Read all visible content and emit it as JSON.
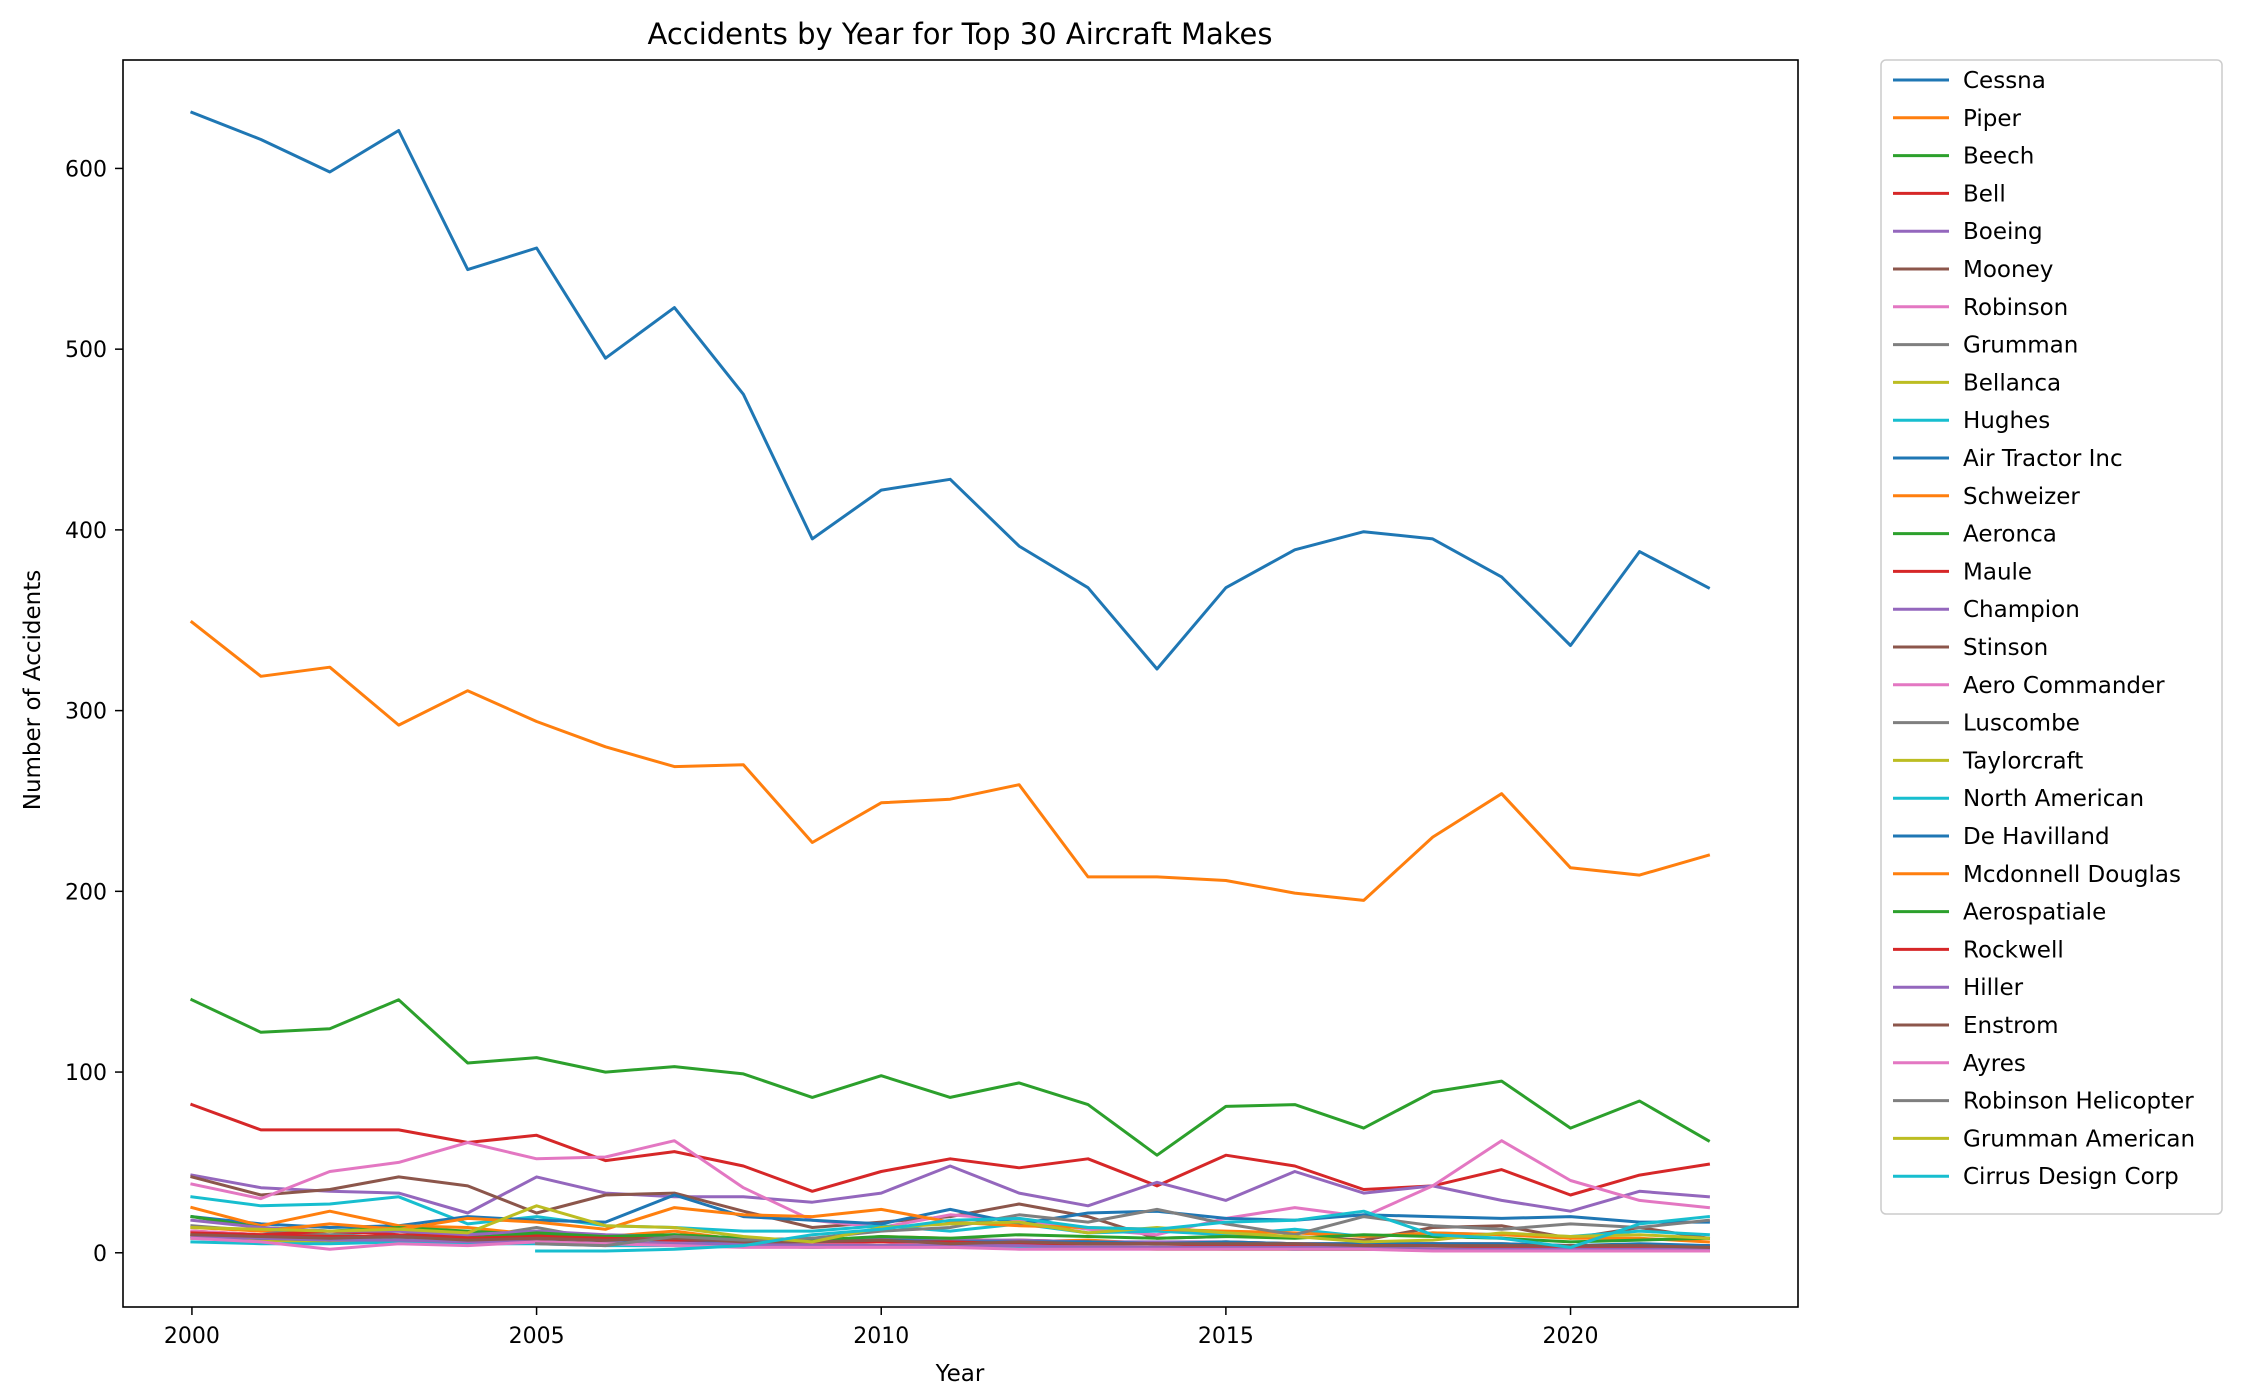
{
  "chart_data": {
    "type": "line",
    "title": "Accidents by Year for Top 30 Aircraft Makes",
    "xlabel": "Year",
    "ylabel": "Number of Accidents",
    "x": [
      2000,
      2001,
      2002,
      2003,
      2004,
      2005,
      2006,
      2007,
      2008,
      2009,
      2010,
      2011,
      2012,
      2013,
      2014,
      2015,
      2016,
      2017,
      2018,
      2019,
      2020,
      2021,
      2022
    ],
    "xlim": [
      1999,
      2023.3
    ],
    "ylim": [
      -30,
      660
    ],
    "xticks": [
      2000,
      2005,
      2010,
      2015,
      2020
    ],
    "yticks": [
      0,
      100,
      200,
      300,
      400,
      500,
      600
    ],
    "grid": false,
    "legend_position": "outside-right",
    "series": [
      {
        "name": "Cessna",
        "color": "#1f77b4",
        "values": [
          631,
          616,
          598,
          621,
          544,
          556,
          495,
          523,
          475,
          395,
          422,
          428,
          391,
          368,
          323,
          368,
          389,
          399,
          395,
          374,
          336,
          388,
          368
        ]
      },
      {
        "name": "Piper",
        "color": "#ff7f0e",
        "values": [
          349,
          319,
          324,
          292,
          311,
          294,
          280,
          269,
          270,
          227,
          249,
          251,
          259,
          208,
          208,
          206,
          199,
          195,
          230,
          254,
          213,
          209,
          220
        ]
      },
      {
        "name": "Beech",
        "color": "#2ca02c",
        "values": [
          140,
          122,
          124,
          140,
          105,
          108,
          100,
          103,
          99,
          86,
          98,
          86,
          94,
          82,
          54,
          81,
          82,
          69,
          89,
          95,
          69,
          84,
          62
        ]
      },
      {
        "name": "Bell",
        "color": "#d62728",
        "values": [
          82,
          68,
          68,
          68,
          61,
          65,
          51,
          56,
          48,
          34,
          45,
          52,
          47,
          52,
          37,
          54,
          48,
          35,
          37,
          46,
          32,
          43,
          49
        ]
      },
      {
        "name": "Boeing",
        "color": "#9467bd",
        "values": [
          43,
          36,
          34,
          33,
          22,
          42,
          33,
          31,
          31,
          28,
          33,
          48,
          33,
          26,
          39,
          29,
          45,
          33,
          37,
          29,
          23,
          34,
          31
        ]
      },
      {
        "name": "Mooney",
        "color": "#8c564b",
        "values": [
          42,
          32,
          35,
          42,
          37,
          22,
          32,
          33,
          23,
          14,
          17,
          20,
          27,
          20,
          8,
          9,
          9,
          7,
          14,
          15,
          8,
          14,
          8
        ]
      },
      {
        "name": "Robinson",
        "color": "#e377c2",
        "values": [
          38,
          30,
          45,
          50,
          61,
          52,
          53,
          62,
          36,
          18,
          14,
          21,
          18,
          13,
          10,
          19,
          25,
          20,
          37,
          62,
          40,
          29,
          25
        ]
      },
      {
        "name": "Grumman",
        "color": "#7f7f7f",
        "values": [
          15,
          12,
          10,
          12,
          8,
          14,
          7,
          9,
          7,
          5,
          6,
          5,
          5,
          6,
          5,
          5,
          4,
          4,
          5,
          4,
          4,
          4,
          3
        ]
      },
      {
        "name": "Bellanca",
        "color": "#bcbd22",
        "values": [
          10,
          8,
          8,
          7,
          6,
          7,
          5,
          5,
          4,
          3,
          4,
          3,
          3,
          3,
          3,
          2,
          2,
          3,
          2,
          2,
          2,
          2,
          1
        ]
      },
      {
        "name": "Hughes",
        "color": "#17becf",
        "values": [
          31,
          26,
          27,
          31,
          16,
          20,
          15,
          14,
          12,
          12,
          15,
          12,
          16,
          11,
          12,
          10,
          13,
          9,
          11,
          10,
          9,
          12,
          10
        ]
      },
      {
        "name": "Air Tractor Inc",
        "color": "#1f77b4",
        "values": [
          20,
          16,
          14,
          15,
          20,
          18,
          17,
          32,
          20,
          18,
          16,
          24,
          16,
          22,
          23,
          19,
          18,
          21,
          20,
          19,
          20,
          17,
          17
        ]
      },
      {
        "name": "Schweizer",
        "color": "#ff7f0e",
        "values": [
          25,
          15,
          23,
          15,
          14,
          10,
          9,
          12,
          7,
          6,
          9,
          8,
          6,
          7,
          5,
          5,
          4,
          4,
          5,
          5,
          4,
          4,
          4
        ]
      },
      {
        "name": "Aeronca",
        "color": "#2ca02c",
        "values": [
          20,
          14,
          12,
          14,
          12,
          10,
          9,
          10,
          8,
          7,
          8,
          7,
          6,
          6,
          5,
          5,
          5,
          4,
          4,
          4,
          3,
          3,
          3
        ]
      },
      {
        "name": "Maule",
        "color": "#d62728",
        "values": [
          12,
          10,
          12,
          10,
          9,
          10,
          9,
          8,
          7,
          8,
          7,
          6,
          7,
          6,
          5,
          6,
          5,
          5,
          5,
          4,
          4,
          4,
          3
        ]
      },
      {
        "name": "Champion",
        "color": "#9467bd",
        "values": [
          18,
          14,
          12,
          12,
          10,
          12,
          10,
          9,
          8,
          7,
          8,
          7,
          7,
          6,
          6,
          6,
          5,
          5,
          5,
          5,
          4,
          4,
          4
        ]
      },
      {
        "name": "Stinson",
        "color": "#8c564b",
        "values": [
          10,
          8,
          7,
          8,
          6,
          7,
          6,
          5,
          5,
          4,
          4,
          4,
          3,
          3,
          3,
          3,
          2,
          2,
          2,
          2,
          2,
          2,
          1
        ]
      },
      {
        "name": "Aero Commander",
        "color": "#e377c2",
        "values": [
          12,
          10,
          6,
          9,
          7,
          8,
          7,
          6,
          5,
          5,
          6,
          4,
          4,
          4,
          3,
          3,
          3,
          3,
          3,
          2,
          2,
          2,
          2
        ]
      },
      {
        "name": "Luscombe",
        "color": "#7f7f7f",
        "values": [
          8,
          7,
          6,
          7,
          5,
          6,
          5,
          5,
          4,
          4,
          4,
          3,
          3,
          3,
          3,
          3,
          2,
          2,
          2,
          2,
          2,
          2,
          1
        ]
      },
      {
        "name": "Taylorcraft",
        "color": "#bcbd22",
        "values": [
          8,
          7,
          6,
          6,
          5,
          6,
          5,
          4,
          4,
          3,
          4,
          3,
          3,
          3,
          2,
          2,
          2,
          2,
          2,
          2,
          1,
          1,
          1
        ]
      },
      {
        "name": "North American",
        "color": "#17becf",
        "values": [
          6,
          5,
          5,
          6,
          5,
          5,
          4,
          4,
          4,
          3,
          4,
          3,
          3,
          3,
          3,
          3,
          2,
          3,
          2,
          2,
          2,
          2,
          2
        ]
      },
      {
        "name": "De Havilland",
        "color": "#1f77b4",
        "values": [
          9,
          8,
          8,
          9,
          7,
          8,
          7,
          7,
          6,
          6,
          7,
          6,
          6,
          6,
          5,
          6,
          5,
          5,
          5,
          5,
          4,
          5,
          4
        ]
      },
      {
        "name": "Mcdonnell Douglas",
        "color": "#ff7f0e",
        "values": [
          14,
          12,
          16,
          13,
          19,
          17,
          13,
          25,
          21,
          20,
          24,
          17,
          15,
          14,
          13,
          12,
          11,
          9,
          11,
          10,
          8,
          8,
          6
        ]
      },
      {
        "name": "Aerospatiale",
        "color": "#2ca02c",
        "values": [
          10,
          8,
          7,
          9,
          8,
          11,
          9,
          10,
          8,
          7,
          9,
          8,
          10,
          9,
          8,
          9,
          8,
          10,
          9,
          8,
          6,
          7,
          8
        ]
      },
      {
        "name": "Rockwell",
        "color": "#d62728",
        "values": [
          11,
          10,
          9,
          9,
          8,
          9,
          8,
          7,
          7,
          6,
          6,
          6,
          5,
          5,
          5,
          4,
          4,
          4,
          4,
          3,
          3,
          3,
          3
        ]
      },
      {
        "name": "Hiller",
        "color": "#9467bd",
        "values": [
          9,
          8,
          7,
          7,
          6,
          6,
          5,
          5,
          5,
          4,
          4,
          4,
          4,
          3,
          3,
          3,
          3,
          3,
          2,
          2,
          2,
          2,
          2
        ]
      },
      {
        "name": "Enstrom",
        "color": "#8c564b",
        "values": [
          10,
          9,
          8,
          9,
          7,
          8,
          7,
          8,
          6,
          6,
          7,
          5,
          6,
          5,
          5,
          5,
          5,
          4,
          4,
          4,
          4,
          4,
          3
        ]
      },
      {
        "name": "Ayres",
        "color": "#e377c2",
        "values": [
          8,
          6,
          2,
          5,
          4,
          6,
          5,
          4,
          3,
          3,
          3,
          3,
          2,
          2,
          2,
          2,
          2,
          2,
          1,
          1,
          1,
          1,
          1
        ]
      },
      {
        "name": "Robinson Helicopter",
        "color": "#7f7f7f",
        "values": [
          null,
          null,
          null,
          null,
          null,
          5,
          4,
          9,
          7,
          8,
          12,
          14,
          21,
          17,
          24,
          16,
          10,
          20,
          15,
          13,
          16,
          14,
          18
        ]
      },
      {
        "name": "Grumman American",
        "color": "#bcbd22",
        "values": [
          14,
          13,
          12,
          13,
          11,
          26,
          15,
          14,
          9,
          6,
          14,
          16,
          17,
          11,
          14,
          11,
          9,
          6,
          7,
          11,
          9,
          10,
          8
        ]
      },
      {
        "name": "Cirrus Design Corp",
        "color": "#17becf",
        "values": [
          null,
          null,
          null,
          null,
          null,
          1,
          1,
          2,
          4,
          10,
          13,
          18,
          19,
          14,
          13,
          17,
          18,
          23,
          10,
          8,
          3,
          16,
          20
        ]
      }
    ]
  }
}
